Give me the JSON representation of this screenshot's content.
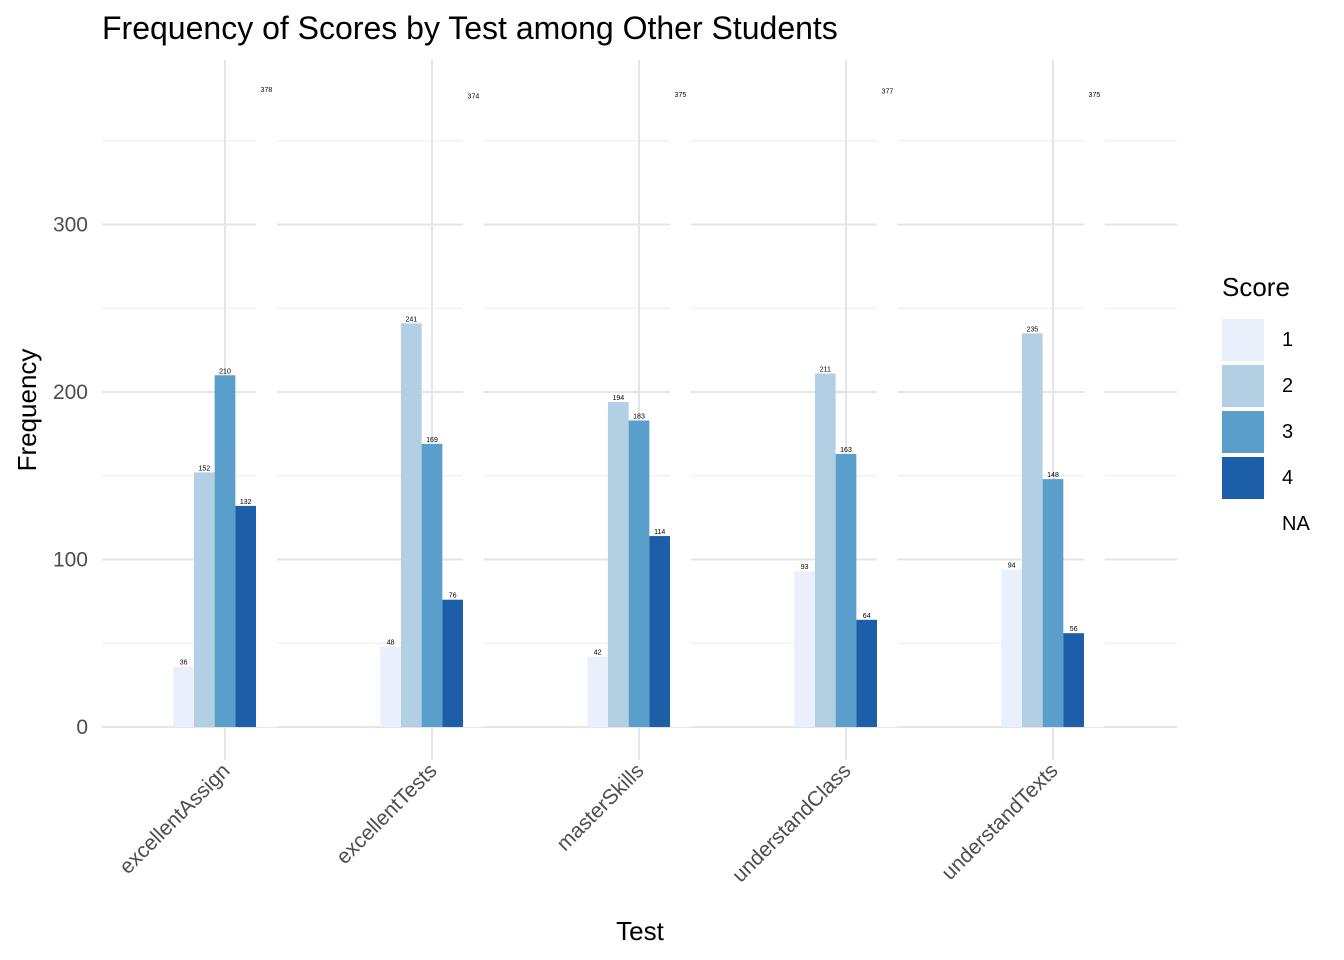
{
  "chart_data": {
    "type": "bar",
    "title": "Frequency of Scores by Test among Other Students",
    "xlabel": "Test",
    "ylabel": "Frequency",
    "categories": [
      "excellentAssign",
      "excellentTests",
      "masterSkills",
      "understandClass",
      "understandTexts"
    ],
    "yticks": [
      0,
      100,
      200,
      300
    ],
    "ylim": [
      -20,
      400
    ],
    "grid": true,
    "legend": {
      "title": "Score",
      "position": "right"
    },
    "series": [
      {
        "name": "1",
        "color": "#eaf0fb",
        "values": [
          36,
          48,
          42,
          93,
          94
        ]
      },
      {
        "name": "2",
        "color": "#b3cfe3",
        "values": [
          152,
          241,
          194,
          211,
          235
        ]
      },
      {
        "name": "3",
        "color": "#5a9fcc",
        "values": [
          210,
          169,
          183,
          163,
          148
        ]
      },
      {
        "name": "4",
        "color": "#1d5ea8",
        "values": [
          132,
          76,
          114,
          64,
          56
        ]
      },
      {
        "name": "NA",
        "color": "#ffffff",
        "values": [
          378,
          374,
          375,
          377,
          375
        ]
      }
    ]
  }
}
